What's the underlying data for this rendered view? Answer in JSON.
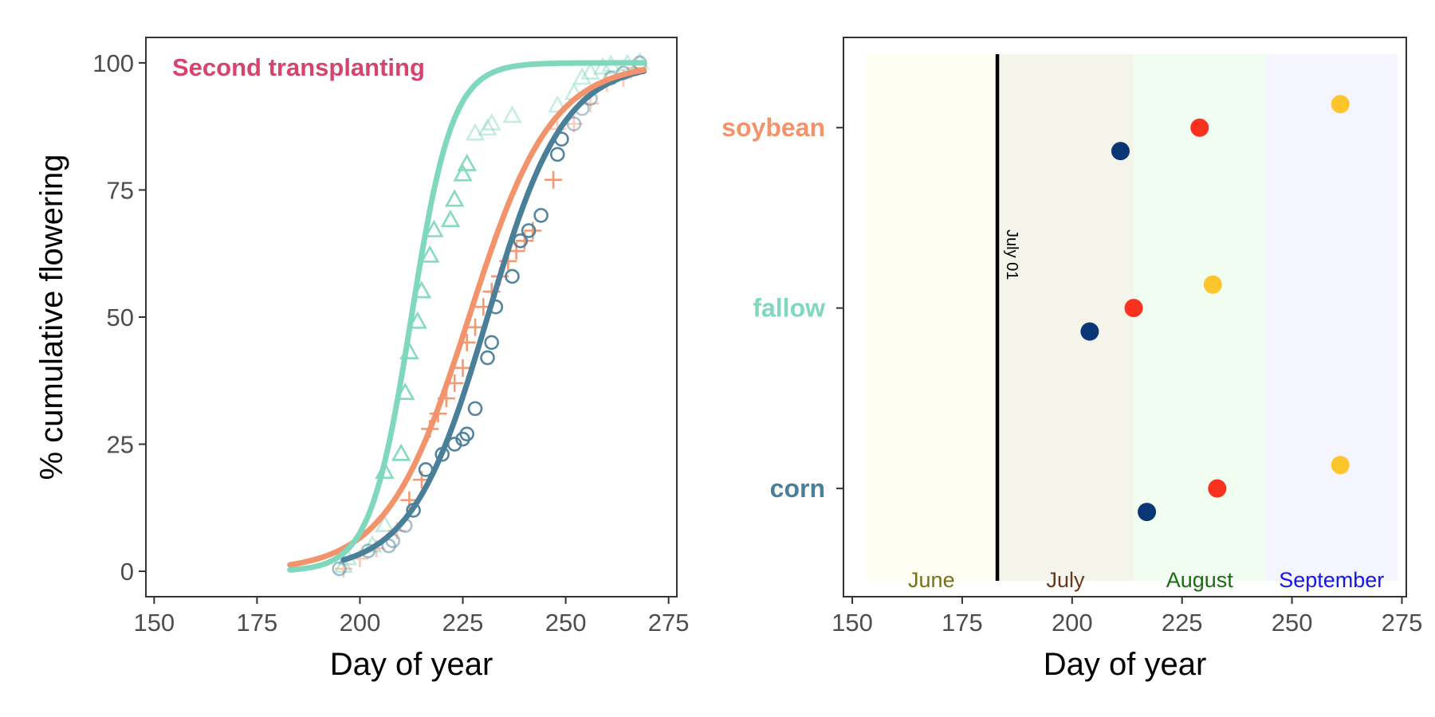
{
  "chart_data": [
    {
      "type": "line",
      "annotation": "Second transplanting",
      "xlabel": "Day of year",
      "ylabel": "% cumulative flowering",
      "xlim": [
        148,
        277
      ],
      "ylim": [
        -5,
        105
      ],
      "x_ticks": [
        150,
        175,
        200,
        225,
        250,
        275
      ],
      "y_ticks": [
        0,
        25,
        50,
        75,
        100
      ],
      "grid": false,
      "colors": {
        "annotation": "#d6436e",
        "fallow": "#7fd8be",
        "corn": "#4a7f99",
        "soybean": "#f2936b"
      },
      "series": [
        {
          "key": "fallow",
          "color": "#7fd8be",
          "marker": "triangle",
          "curve": {
            "model": "logistic",
            "x0": 212.5,
            "k": 0.2,
            "x_start": 183,
            "x_end": 269
          },
          "points": [
            [
              196,
              1
            ],
            [
              197,
              2.5
            ],
            [
              203,
              5
            ],
            [
              206,
              9
            ],
            [
              206,
              19.5
            ],
            [
              210,
              23
            ],
            [
              211,
              35
            ],
            [
              212,
              43
            ],
            [
              214,
              49
            ],
            [
              215,
              55
            ],
            [
              217,
              62
            ],
            [
              218,
              67
            ],
            [
              222,
              69
            ],
            [
              223,
              73
            ],
            [
              225,
              78
            ],
            [
              226,
              80
            ],
            [
              228,
              86
            ],
            [
              231,
              87
            ],
            [
              232,
              88
            ],
            [
              237,
              89.5
            ],
            [
              248,
              91.5
            ],
            [
              252,
              94
            ],
            [
              254,
              97
            ],
            [
              256,
              98
            ],
            [
              259,
              99
            ],
            [
              261,
              99.5
            ],
            [
              265,
              99.7
            ],
            [
              268,
              100
            ]
          ]
        },
        {
          "key": "soybean",
          "color": "#f2936b",
          "marker": "plus",
          "curve": {
            "model": "logistic",
            "x0": 226.5,
            "k": 0.1,
            "x_start": 183,
            "x_end": 269
          },
          "points": [
            [
              196,
              0.5
            ],
            [
              200,
              2.5
            ],
            [
              204,
              4.5
            ],
            [
              209,
              8
            ],
            [
              212,
              14
            ],
            [
              215,
              18
            ],
            [
              217,
              28
            ],
            [
              219,
              31
            ],
            [
              221,
              34
            ],
            [
              223,
              37
            ],
            [
              225,
              40
            ],
            [
              226,
              45
            ],
            [
              228,
              48
            ],
            [
              230,
              52
            ],
            [
              232,
              55
            ],
            [
              234,
              58
            ],
            [
              236,
              61
            ],
            [
              238,
              63
            ],
            [
              240,
              65
            ],
            [
              242,
              67
            ],
            [
              247,
              77
            ],
            [
              248,
              87
            ],
            [
              252,
              88
            ],
            [
              256,
              92
            ],
            [
              260,
              96
            ],
            [
              264,
              97
            ],
            [
              267,
              99
            ]
          ]
        },
        {
          "key": "corn",
          "color": "#4a7f99",
          "marker": "circle",
          "curve": {
            "model": "logistic",
            "x0": 231,
            "k": 0.108,
            "x_start": 196,
            "x_end": 269
          },
          "points": [
            [
              195,
              0.5
            ],
            [
              202,
              4
            ],
            [
              207,
              5
            ],
            [
              208,
              6
            ],
            [
              211,
              9
            ],
            [
              213,
              12
            ],
            [
              216,
              20
            ],
            [
              220,
              23
            ],
            [
              223,
              25
            ],
            [
              225,
              26
            ],
            [
              226,
              27
            ],
            [
              228,
              32
            ],
            [
              231,
              42
            ],
            [
              232,
              45
            ],
            [
              233,
              52
            ],
            [
              237,
              58
            ],
            [
              239,
              65
            ],
            [
              241,
              67
            ],
            [
              244,
              70
            ],
            [
              248,
              82
            ],
            [
              249,
              85
            ],
            [
              252,
              88
            ],
            [
              254,
              91
            ],
            [
              256,
              93
            ],
            [
              261,
              97
            ],
            [
              264,
              98
            ],
            [
              268,
              100
            ]
          ]
        }
      ]
    },
    {
      "type": "scatter",
      "xlabel": "Day of year",
      "xlim": [
        148,
        276
      ],
      "x_ticks": [
        150,
        175,
        200,
        225,
        250,
        275
      ],
      "categories": [
        "corn",
        "fallow",
        "soybean"
      ],
      "category_colors": {
        "corn": "#4a7f99",
        "fallow": "#7fd8be",
        "soybean": "#f2936b"
      },
      "reference_line": {
        "x": 183,
        "label": "July 01",
        "color": "#000000"
      },
      "months": [
        {
          "label": "June",
          "start": 153,
          "end": 183,
          "fill": "#fefef3",
          "text_color": "#777014"
        },
        {
          "label": "July",
          "start": 183,
          "end": 214,
          "fill": "#f4f4eb",
          "text_color": "#6b3517"
        },
        {
          "label": "August",
          "start": 214,
          "end": 244,
          "fill": "#f2fdf2",
          "text_color": "#1b6b12"
        },
        {
          "label": "September",
          "start": 244,
          "end": 274,
          "fill": "#f5f5ff",
          "text_color": "#1515ef"
        }
      ],
      "series": [
        {
          "color": "#0b3676",
          "offset": -0.13,
          "points": [
            {
              "category": "corn",
              "x": 217
            },
            {
              "category": "fallow",
              "x": 204
            },
            {
              "category": "soybean",
              "x": 211
            }
          ]
        },
        {
          "color": "#f8321e",
          "offset": 0,
          "points": [
            {
              "category": "corn",
              "x": 233
            },
            {
              "category": "fallow",
              "x": 214
            },
            {
              "category": "soybean",
              "x": 229
            }
          ]
        },
        {
          "color": "#fcc52c",
          "offset": 0.13,
          "points": [
            {
              "category": "corn",
              "x": 261
            },
            {
              "category": "fallow",
              "x": 232
            },
            {
              "category": "soybean",
              "x": 261
            }
          ]
        }
      ]
    }
  ]
}
